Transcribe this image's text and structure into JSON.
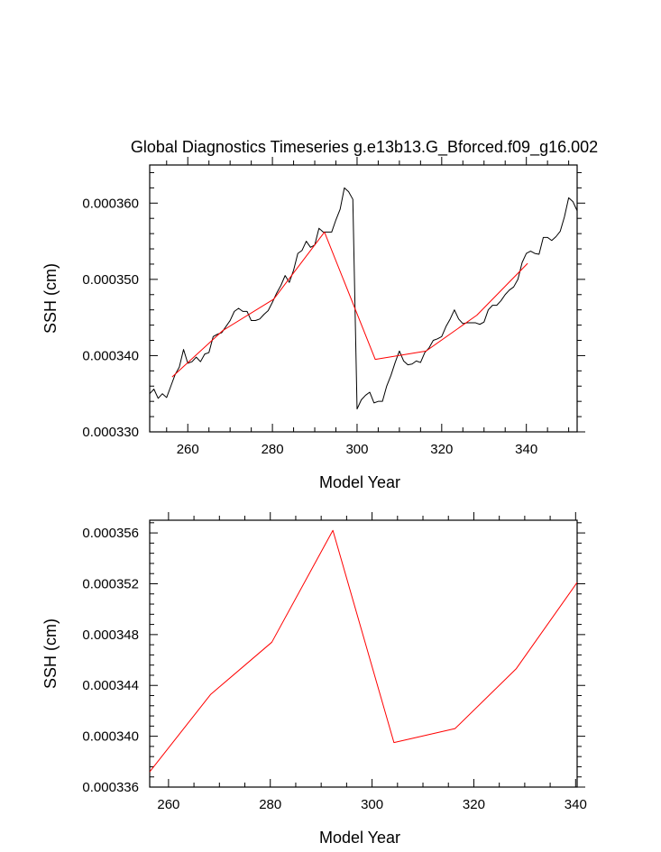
{
  "colors": {
    "raw_line": "#000000",
    "mean_line": "#ff0000",
    "frame": "#000000"
  },
  "chart_data": [
    {
      "type": "line",
      "title": "Global Diagnostics Timeseries g.e13b13.G_Bforced.f09_g16.002",
      "xlabel": "Model Year",
      "ylabel": "SSH (cm)",
      "xlim": [
        251,
        352
      ],
      "ylim": [
        0.00033,
        0.000365
      ],
      "xticks": [
        260,
        280,
        300,
        320,
        340
      ],
      "xtick_labels": [
        "260",
        "280",
        "300",
        "320",
        "340"
      ],
      "yticks": [
        0.00033,
        0.00034,
        0.00035,
        0.00036
      ],
      "ytick_labels": [
        "0.000330",
        "0.000340",
        "0.000350",
        "0.000360"
      ],
      "grid": false,
      "series": [
        {
          "color": "#000000",
          "x": [
            251,
            252,
            253,
            254,
            255,
            256,
            257,
            258,
            259,
            260,
            261,
            262,
            263,
            264,
            265,
            266,
            267,
            268,
            269,
            270,
            271,
            272,
            273,
            274,
            275,
            276,
            277,
            278,
            279,
            280,
            281,
            282,
            283,
            284,
            285,
            286,
            287,
            288,
            289,
            290,
            291,
            292,
            293,
            294,
            295,
            296,
            297,
            298,
            299,
            300,
            301,
            302,
            303,
            304,
            305,
            306,
            307,
            308,
            309,
            310,
            311,
            312,
            313,
            314,
            315,
            316,
            317,
            318,
            319,
            320,
            321,
            322,
            323,
            324,
            325,
            326,
            327,
            328,
            329,
            330,
            331,
            332,
            333,
            334,
            335,
            336,
            337,
            338,
            339,
            340,
            341,
            342,
            343,
            344,
            345,
            346,
            347,
            348,
            349,
            350,
            351,
            352
          ],
          "y": [
            0.000335,
            0.0003356,
            0.0003344,
            0.000335,
            0.0003345,
            0.000336,
            0.0003375,
            0.0003385,
            0.0003408,
            0.000339,
            0.0003392,
            0.0003398,
            0.0003392,
            0.0003402,
            0.0003404,
            0.0003425,
            0.0003428,
            0.000343,
            0.0003438,
            0.0003446,
            0.0003458,
            0.0003462,
            0.0003458,
            0.0003458,
            0.0003446,
            0.0003446,
            0.0003448,
            0.0003454,
            0.0003459,
            0.000347,
            0.0003482,
            0.0003492,
            0.0003505,
            0.0003496,
            0.0003512,
            0.0003534,
            0.0003538,
            0.000355,
            0.0003542,
            0.0003545,
            0.0003567,
            0.0003562,
            0.0003562,
            0.0003562,
            0.0003578,
            0.0003592,
            0.000362,
            0.0003615,
            0.0003605,
            0.000333,
            0.0003342,
            0.0003348,
            0.0003352,
            0.0003338,
            0.000334,
            0.000334,
            0.000336,
            0.0003374,
            0.0003391,
            0.0003406,
            0.0003393,
            0.0003388,
            0.0003389,
            0.0003393,
            0.0003391,
            0.0003404,
            0.000341,
            0.000342,
            0.0003422,
            0.0003425,
            0.0003438,
            0.0003448,
            0.000346,
            0.0003448,
            0.0003442,
            0.0003443,
            0.0003443,
            0.0003443,
            0.0003441,
            0.0003444,
            0.000346,
            0.0003466,
            0.0003466,
            0.0003472,
            0.000348,
            0.0003486,
            0.000349,
            0.00035,
            0.0003522,
            0.0003534,
            0.0003537,
            0.0003534,
            0.0003533,
            0.0003555,
            0.0003555,
            0.0003551,
            0.0003556,
            0.0003563,
            0.0003582,
            0.0003607,
            0.0003602,
            0.000359
          ]
        },
        {
          "color": "#ff0000",
          "x": [
            256.3,
            268.3,
            280.3,
            292.3,
            304.3,
            316.3,
            328.3,
            340.3
          ],
          "y": [
            0.0003372,
            0.0003433,
            0.0003474,
            0.0003562,
            0.0003395,
            0.0003406,
            0.0003453,
            0.0003521
          ]
        }
      ]
    },
    {
      "type": "line",
      "title": "",
      "xlabel": "Model Year",
      "ylabel": "SSH (cm)",
      "xlim": [
        256.3,
        340.3
      ],
      "ylim": [
        0.000336,
        0.000357
      ],
      "xticks": [
        260,
        280,
        300,
        320,
        340
      ],
      "xtick_labels": [
        "260",
        "280",
        "300",
        "320",
        "340"
      ],
      "yticks": [
        0.000336,
        0.00034,
        0.000344,
        0.000348,
        0.000352,
        0.000356
      ],
      "ytick_labels": [
        "0.000336",
        "0.000340",
        "0.000344",
        "0.000348",
        "0.000352",
        "0.000356"
      ],
      "grid": false,
      "series": [
        {
          "color": "#ff0000",
          "x": [
            256.3,
            268.3,
            280.3,
            292.3,
            304.3,
            316.3,
            328.3,
            340.3
          ],
          "y": [
            0.0003372,
            0.0003433,
            0.0003474,
            0.0003562,
            0.0003395,
            0.0003406,
            0.0003453,
            0.0003521
          ]
        }
      ]
    }
  ]
}
